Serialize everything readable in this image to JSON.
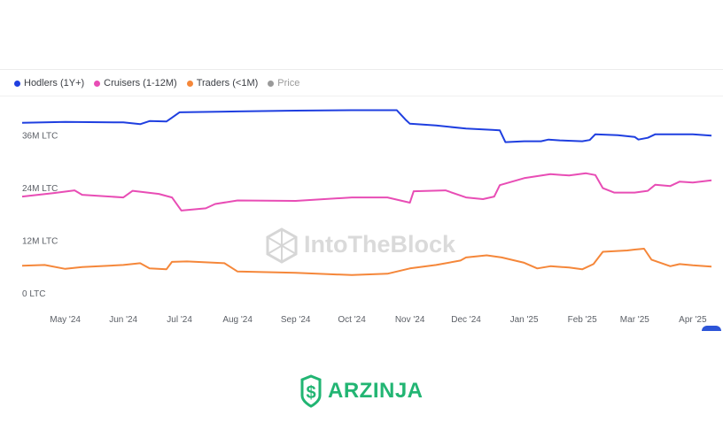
{
  "brand": {
    "name": "ARZINJA",
    "color": "#22b573",
    "icon": "shield-dollar-icon"
  },
  "watermark": {
    "text": "IntoTheBlock",
    "icon": "cube-logo-icon"
  },
  "chart_data": {
    "type": "line",
    "title": "",
    "xlabel": "",
    "ylabel": "",
    "grid": false,
    "legend_position": "top-left",
    "ylim": [
      0,
      44
    ],
    "y_unit": "M LTC",
    "y_ticks": [
      {
        "value": 0,
        "label": "0 LTC"
      },
      {
        "value": 12,
        "label": "12M LTC"
      },
      {
        "value": 24,
        "label": "24M LTC"
      },
      {
        "value": 36,
        "label": "36M LTC"
      }
    ],
    "xlim": [
      "2024-04-08",
      "2025-04-11"
    ],
    "x_ticks": [
      {
        "date": "2024-05-01",
        "label": "May '24"
      },
      {
        "date": "2024-06-01",
        "label": "Jun '24"
      },
      {
        "date": "2024-07-01",
        "label": "Jul '24"
      },
      {
        "date": "2024-08-01",
        "label": "Aug '24"
      },
      {
        "date": "2024-09-01",
        "label": "Sep '24"
      },
      {
        "date": "2024-10-01",
        "label": "Oct '24"
      },
      {
        "date": "2024-11-01",
        "label": "Nov '24"
      },
      {
        "date": "2024-12-01",
        "label": "Dec '24"
      },
      {
        "date": "2025-01-01",
        "label": "Jan '25"
      },
      {
        "date": "2025-02-01",
        "label": "Feb '25"
      },
      {
        "date": "2025-03-01",
        "label": "Mar '25"
      },
      {
        "date": "2025-04-01",
        "label": "Apr '25"
      }
    ],
    "series": [
      {
        "name": "Hodlers (1Y+)",
        "color": "#1f3fe0",
        "points": [
          [
            "2024-04-08",
            40.2
          ],
          [
            "2024-05-01",
            40.4
          ],
          [
            "2024-06-01",
            40.3
          ],
          [
            "2024-06-10",
            39.9
          ],
          [
            "2024-06-15",
            40.6
          ],
          [
            "2024-06-24",
            40.5
          ],
          [
            "2024-06-27",
            41.4
          ],
          [
            "2024-07-01",
            42.6
          ],
          [
            "2024-08-01",
            42.8
          ],
          [
            "2024-09-01",
            43.0
          ],
          [
            "2024-10-01",
            43.1
          ],
          [
            "2024-10-25",
            43.1
          ],
          [
            "2024-10-30",
            40.8
          ],
          [
            "2024-11-01",
            40.0
          ],
          [
            "2024-11-15",
            39.6
          ],
          [
            "2024-12-01",
            38.9
          ],
          [
            "2024-12-15",
            38.6
          ],
          [
            "2024-12-19",
            38.5
          ],
          [
            "2024-12-22",
            35.8
          ],
          [
            "2025-01-01",
            36.0
          ],
          [
            "2025-01-10",
            36.0
          ],
          [
            "2025-01-14",
            36.4
          ],
          [
            "2025-01-20",
            36.2
          ],
          [
            "2025-02-01",
            36.0
          ],
          [
            "2025-02-05",
            36.3
          ],
          [
            "2025-02-08",
            37.6
          ],
          [
            "2025-02-20",
            37.4
          ],
          [
            "2025-03-01",
            37.0
          ],
          [
            "2025-03-03",
            36.4
          ],
          [
            "2025-03-08",
            36.8
          ],
          [
            "2025-03-12",
            37.6
          ],
          [
            "2025-04-01",
            37.6
          ],
          [
            "2025-04-11",
            37.3
          ]
        ]
      },
      {
        "name": "Cruisers (1-12M)",
        "color": "#e84db5",
        "points": [
          [
            "2024-04-08",
            23.4
          ],
          [
            "2024-04-25",
            24.2
          ],
          [
            "2024-05-06",
            24.8
          ],
          [
            "2024-05-10",
            23.8
          ],
          [
            "2024-06-01",
            23.2
          ],
          [
            "2024-06-06",
            24.7
          ],
          [
            "2024-06-20",
            24.0
          ],
          [
            "2024-06-27",
            23.2
          ],
          [
            "2024-07-02",
            20.2
          ],
          [
            "2024-07-15",
            20.7
          ],
          [
            "2024-07-20",
            21.7
          ],
          [
            "2024-08-01",
            22.5
          ],
          [
            "2024-09-01",
            22.4
          ],
          [
            "2024-10-01",
            23.2
          ],
          [
            "2024-10-20",
            23.2
          ],
          [
            "2024-11-01",
            22.0
          ],
          [
            "2024-11-03",
            24.6
          ],
          [
            "2024-11-20",
            24.8
          ],
          [
            "2024-12-01",
            23.2
          ],
          [
            "2024-12-10",
            22.8
          ],
          [
            "2024-12-16",
            23.4
          ],
          [
            "2024-12-19",
            26.0
          ],
          [
            "2025-01-01",
            27.6
          ],
          [
            "2025-01-15",
            28.5
          ],
          [
            "2025-01-25",
            28.2
          ],
          [
            "2025-02-03",
            28.7
          ],
          [
            "2025-02-08",
            28.3
          ],
          [
            "2025-02-12",
            25.3
          ],
          [
            "2025-02-18",
            24.3
          ],
          [
            "2025-03-01",
            24.3
          ],
          [
            "2025-03-08",
            24.7
          ],
          [
            "2025-03-12",
            26.1
          ],
          [
            "2025-03-20",
            25.8
          ],
          [
            "2025-03-25",
            26.8
          ],
          [
            "2025-04-01",
            26.6
          ],
          [
            "2025-04-11",
            27.1
          ]
        ]
      },
      {
        "name": "Traders (<1M)",
        "color": "#f5873a",
        "points": [
          [
            "2024-04-08",
            7.6
          ],
          [
            "2024-04-20",
            7.8
          ],
          [
            "2024-05-01",
            6.9
          ],
          [
            "2024-05-10",
            7.3
          ],
          [
            "2024-06-01",
            7.8
          ],
          [
            "2024-06-10",
            8.2
          ],
          [
            "2024-06-15",
            7.0
          ],
          [
            "2024-06-24",
            6.8
          ],
          [
            "2024-06-27",
            8.5
          ],
          [
            "2024-07-05",
            8.6
          ],
          [
            "2024-07-25",
            8.2
          ],
          [
            "2024-08-01",
            6.3
          ],
          [
            "2024-09-01",
            6.0
          ],
          [
            "2024-10-01",
            5.5
          ],
          [
            "2024-10-20",
            5.8
          ],
          [
            "2024-11-01",
            7.0
          ],
          [
            "2024-11-15",
            7.8
          ],
          [
            "2024-11-28",
            8.8
          ],
          [
            "2024-12-01",
            9.5
          ],
          [
            "2024-12-12",
            10.0
          ],
          [
            "2024-12-20",
            9.5
          ],
          [
            "2025-01-01",
            8.3
          ],
          [
            "2025-01-08",
            7.0
          ],
          [
            "2025-01-15",
            7.5
          ],
          [
            "2025-01-25",
            7.2
          ],
          [
            "2025-02-01",
            6.8
          ],
          [
            "2025-02-07",
            8.0
          ],
          [
            "2025-02-12",
            10.8
          ],
          [
            "2025-02-25",
            11.1
          ],
          [
            "2025-03-01",
            11.3
          ],
          [
            "2025-03-06",
            11.5
          ],
          [
            "2025-03-10",
            9.0
          ],
          [
            "2025-03-20",
            7.5
          ],
          [
            "2025-03-25",
            8.0
          ],
          [
            "2025-04-01",
            7.7
          ],
          [
            "2025-04-11",
            7.4
          ]
        ]
      },
      {
        "name": "Price",
        "color": "#9a9a9a",
        "points": []
      }
    ]
  }
}
